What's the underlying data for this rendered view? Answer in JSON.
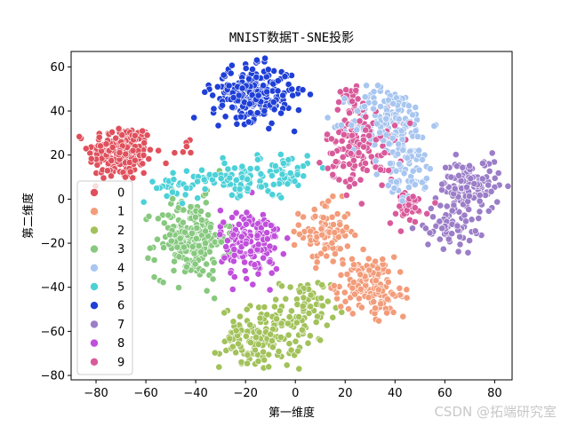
{
  "chart_data": {
    "type": "scatter",
    "title": "MNIST数据T-SNE投影",
    "xlabel": "第一维度",
    "ylabel": "第二维度",
    "xlim": [
      -90,
      87
    ],
    "ylim": [
      -82,
      67
    ],
    "xticks": [
      -80,
      -60,
      -40,
      -20,
      0,
      20,
      40,
      60,
      80
    ],
    "yticks": [
      -80,
      -60,
      -40,
      -20,
      0,
      20,
      40,
      60
    ],
    "grid": false,
    "legend_position": "left",
    "series": [
      {
        "name": "0",
        "color": "#e0505c",
        "clusters": [
          {
            "cx": -70,
            "cy": 21,
            "sx": 6.5,
            "sy": 6.5,
            "n": 220
          },
          {
            "cx": -45,
            "cy": 22,
            "sx": 3,
            "sy": 2,
            "n": 6
          }
        ]
      },
      {
        "name": "1",
        "color": "#f39c7a",
        "clusters": [
          {
            "cx": 12,
            "cy": -15,
            "sx": 5,
            "sy": 7,
            "n": 90
          },
          {
            "cx": 28,
            "cy": -38,
            "sx": 6,
            "sy": 6,
            "n": 120
          },
          {
            "cx": 36,
            "cy": -47,
            "sx": 4,
            "sy": 3,
            "n": 30
          }
        ]
      },
      {
        "name": "2",
        "color": "#a2c25a",
        "clusters": [
          {
            "cx": -14,
            "cy": -63,
            "sx": 8,
            "sy": 7,
            "n": 150
          },
          {
            "cx": 4,
            "cy": -50,
            "sx": 5,
            "sy": 7,
            "n": 70
          }
        ]
      },
      {
        "name": "3",
        "color": "#87c97f",
        "clusters": [
          {
            "cx": -42,
            "cy": -18,
            "sx": 7,
            "sy": 9,
            "n": 220
          }
        ]
      },
      {
        "name": "4",
        "color": "#a8c6f0",
        "clusters": [
          {
            "cx": 38,
            "cy": 35,
            "sx": 8,
            "sy": 8,
            "n": 170
          },
          {
            "cx": 46,
            "cy": 12,
            "sx": 5,
            "sy": 6,
            "n": 60
          }
        ]
      },
      {
        "name": "5",
        "color": "#4cd1d8",
        "clusters": [
          {
            "cx": -25,
            "cy": 10,
            "sx": 7,
            "sy": 4,
            "n": 70
          },
          {
            "cx": -5,
            "cy": 12,
            "sx": 5,
            "sy": 5,
            "n": 55
          },
          {
            "cx": -48,
            "cy": 5,
            "sx": 4,
            "sy": 3,
            "n": 30
          }
        ]
      },
      {
        "name": "6",
        "color": "#1f3fd6",
        "clusters": [
          {
            "cx": -17,
            "cy": 48,
            "sx": 8,
            "sy": 6,
            "n": 260
          }
        ]
      },
      {
        "name": "7",
        "color": "#9b7dc8",
        "clusters": [
          {
            "cx": 70,
            "cy": 6,
            "sx": 6,
            "sy": 6,
            "n": 130
          },
          {
            "cx": 62,
            "cy": -12,
            "sx": 5,
            "sy": 5,
            "n": 70
          }
        ]
      },
      {
        "name": "8",
        "color": "#c04fdb",
        "clusters": [
          {
            "cx": -18,
            "cy": -20,
            "sx": 6,
            "sy": 8,
            "n": 160
          }
        ]
      },
      {
        "name": "9",
        "color": "#d95a9b",
        "clusters": [
          {
            "cx": 26,
            "cy": 24,
            "sx": 7,
            "sy": 9,
            "n": 140
          },
          {
            "cx": 45,
            "cy": -4,
            "sx": 4,
            "sy": 4,
            "n": 40
          },
          {
            "cx": 22,
            "cy": 45,
            "sx": 4,
            "sy": 4,
            "n": 20
          }
        ]
      }
    ]
  },
  "watermark": "CSDN @拓端研究室"
}
